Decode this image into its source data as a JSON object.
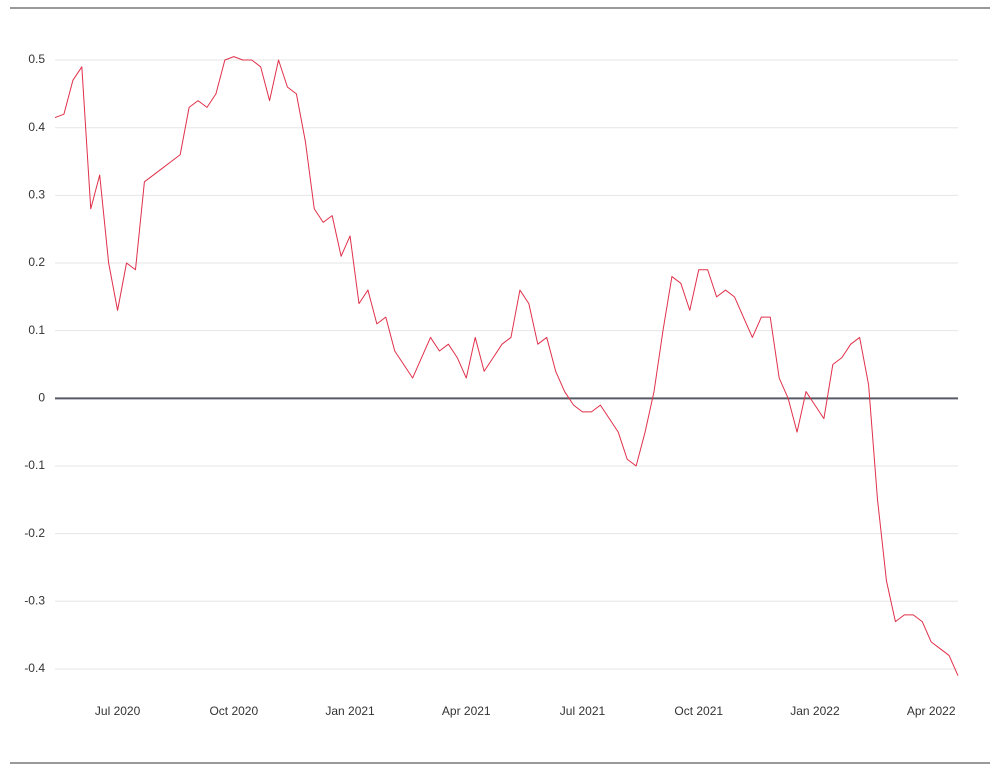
{
  "chart_data": {
    "type": "line",
    "categories": [
      null,
      null,
      null,
      null,
      null,
      null,
      null,
      "Jul 2020",
      null,
      null,
      null,
      null,
      null,
      null,
      null,
      null,
      null,
      null,
      null,
      null,
      "Oct 2020",
      null,
      null,
      null,
      null,
      null,
      null,
      null,
      null,
      null,
      null,
      null,
      null,
      "Jan 2021",
      null,
      null,
      null,
      null,
      null,
      null,
      null,
      null,
      null,
      null,
      null,
      null,
      "Apr 2021",
      null,
      null,
      null,
      null,
      null,
      null,
      null,
      null,
      null,
      null,
      null,
      null,
      "Jul 2021",
      null,
      null,
      null,
      null,
      null,
      null,
      null,
      null,
      null,
      null,
      null,
      null,
      "Oct 2021",
      null,
      null,
      null,
      null,
      null,
      null,
      null,
      null,
      null,
      null,
      null,
      null,
      "Jan 2022",
      null,
      null,
      null,
      null,
      null,
      null,
      null,
      null,
      null,
      null,
      null,
      null,
      "Apr 2022",
      null,
      null,
      null
    ],
    "values": [
      0.415,
      0.42,
      0.47,
      0.49,
      0.28,
      0.33,
      0.2,
      0.13,
      0.2,
      0.19,
      0.32,
      0.33,
      0.34,
      0.35,
      0.36,
      0.43,
      0.44,
      0.43,
      0.45,
      0.5,
      0.505,
      0.5,
      0.5,
      0.49,
      0.44,
      0.5,
      0.46,
      0.45,
      0.38,
      0.28,
      0.26,
      0.27,
      0.21,
      0.24,
      0.14,
      0.16,
      0.11,
      0.12,
      0.07,
      0.05,
      0.03,
      0.06,
      0.09,
      0.07,
      0.08,
      0.06,
      0.03,
      0.09,
      0.04,
      0.06,
      0.08,
      0.09,
      0.16,
      0.14,
      0.08,
      0.09,
      0.04,
      0.01,
      -0.01,
      -0.02,
      -0.02,
      -0.01,
      -0.03,
      -0.05,
      -0.09,
      -0.1,
      -0.05,
      0.01,
      0.1,
      0.18,
      0.17,
      0.13,
      0.19,
      0.19,
      0.15,
      0.16,
      0.15,
      0.12,
      0.09,
      0.12,
      0.12,
      0.03,
      0,
      -0.05,
      0.01,
      -0.01,
      -0.03,
      0.05,
      0.06,
      0.08,
      0.09,
      0.02,
      -0.15,
      -0.27,
      -0.33,
      -0.32,
      -0.32,
      -0.33,
      -0.36,
      -0.37,
      -0.38,
      -0.41
    ],
    "color": "#e0304a",
    "ylim": [
      -0.42,
      0.52
    ],
    "yticks": [
      -0.4,
      -0.3,
      -0.2,
      -0.1,
      0,
      0.1,
      0.2,
      0.3,
      0.4,
      0.5
    ],
    "grid": true,
    "zeroline": true
  }
}
